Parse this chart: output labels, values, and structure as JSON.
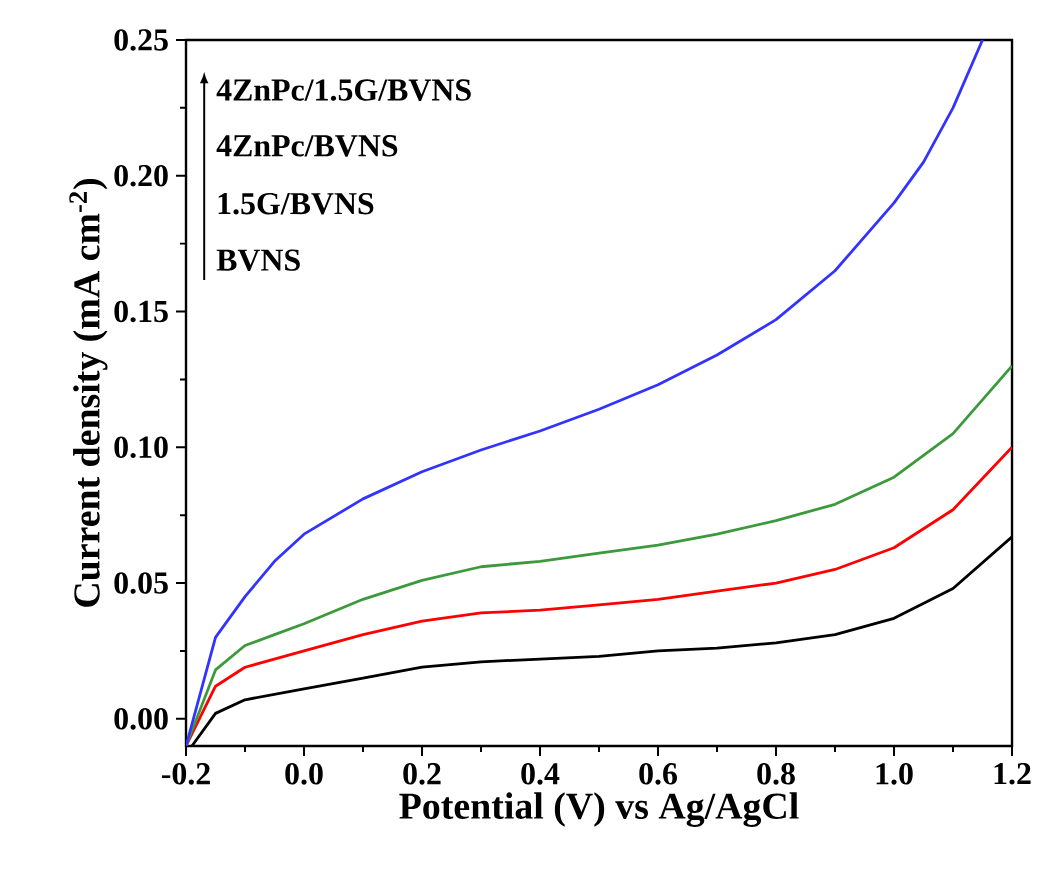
{
  "chart_data": {
    "type": "line",
    "xlabel": "Potential (V) vs Ag/AgCl",
    "ylabel": "Current density (mA cm$^{-2}$)",
    "xlim": [
      -0.2,
      1.2
    ],
    "ylim": [
      -0.01,
      0.25
    ],
    "xticks": [
      {
        "value": -0.2,
        "label": "-0.2"
      },
      {
        "value": 0,
        "label": "0.0"
      },
      0.2,
      0.4,
      0.6,
      0.8,
      {
        "value": 1,
        "label": "1.0"
      },
      1.2
    ],
    "yticks": [
      {
        "value": 0,
        "label": "0.00"
      },
      0.05,
      {
        "value": 0.1,
        "label": "0.10"
      },
      0.15,
      {
        "value": 0.2,
        "label": "0.20"
      },
      0.25
    ],
    "marker": "none",
    "line_style": "solid",
    "annotations": [
      "4ZnPc/1.5G/BVNS",
      "4ZnPc/BVNS",
      "1.5G/BVNS",
      "BVNS"
    ],
    "series": [
      {
        "color": "#000000",
        "x": [
          -0.19,
          -0.15,
          -0.1,
          0,
          0.1,
          0.2,
          0.3,
          0.4,
          0.5,
          0.6,
          0.7,
          0.8,
          0.9,
          1.0,
          1.1,
          1.2
        ],
        "values": [
          -0.01,
          0.002,
          0.007,
          0.011,
          0.015,
          0.019,
          0.021,
          0.022,
          0.023,
          0.025,
          0.026,
          0.028,
          0.031,
          0.037,
          0.048,
          0.067
        ]
      },
      {
        "color": "#ff0000",
        "x": [
          -0.2,
          -0.15,
          -0.1,
          0,
          0.1,
          0.2,
          0.3,
          0.4,
          0.5,
          0.6,
          0.7,
          0.8,
          0.9,
          1.0,
          1.1,
          1.2
        ],
        "values": [
          -0.01,
          0.012,
          0.019,
          0.025,
          0.031,
          0.036,
          0.039,
          0.04,
          0.042,
          0.044,
          0.047,
          0.05,
          0.055,
          0.063,
          0.077,
          0.1
        ]
      },
      {
        "color": "#3c9a3c",
        "x": [
          -0.2,
          -0.15,
          -0.1,
          -0.05,
          0,
          0.1,
          0.2,
          0.3,
          0.4,
          0.5,
          0.6,
          0.7,
          0.8,
          0.9,
          1.0,
          1.1,
          1.2
        ],
        "values": [
          -0.01,
          0.018,
          0.027,
          0.031,
          0.035,
          0.044,
          0.051,
          0.056,
          0.058,
          0.061,
          0.064,
          0.068,
          0.073,
          0.079,
          0.089,
          0.105,
          0.13
        ]
      },
      {
        "color": "#3333ff",
        "x": [
          -0.2,
          -0.15,
          -0.1,
          -0.05,
          0,
          0.1,
          0.2,
          0.3,
          0.4,
          0.5,
          0.6,
          0.7,
          0.8,
          0.9,
          1.0,
          1.05,
          1.1,
          1.15
        ],
        "values": [
          -0.01,
          0.03,
          0.045,
          0.058,
          0.068,
          0.081,
          0.091,
          0.099,
          0.106,
          0.114,
          0.123,
          0.134,
          0.147,
          0.165,
          0.19,
          0.205,
          0.225,
          0.25
        ]
      }
    ]
  }
}
